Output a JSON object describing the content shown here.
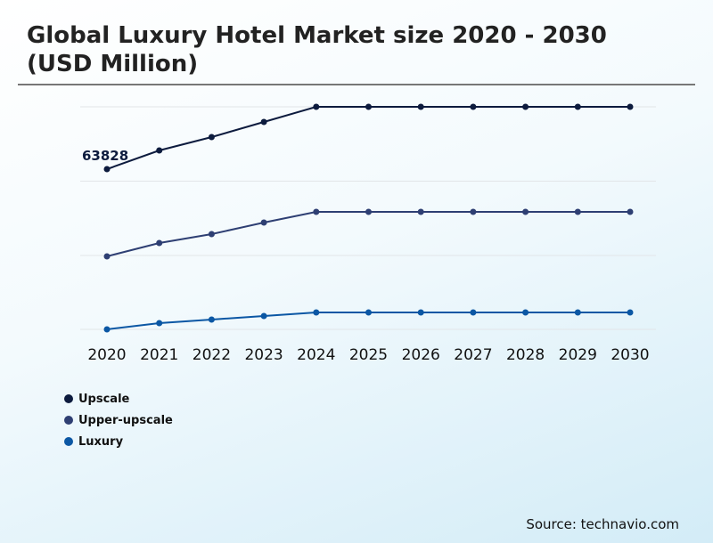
{
  "chart_data": {
    "type": "line",
    "title": "Global Luxury Hotel Market size 2020 - 2030 (USD Million)",
    "xlabel": "",
    "ylabel": "",
    "categories": [
      "2020",
      "2021",
      "2022",
      "2023",
      "2024",
      "2025",
      "2026",
      "2027",
      "2028",
      "2029",
      "2030"
    ],
    "ylim": [
      0,
      88650
    ],
    "grid": true,
    "y_axis_labels_shown": false,
    "legend_position": "bottom-left",
    "series": [
      {
        "name": "Upscale",
        "color": "#0d1b3e",
        "values": [
          63828,
          71275,
          76594,
          82622,
          88650,
          88650,
          88650,
          88650,
          88650,
          88650,
          88650
        ]
      },
      {
        "name": "Upper-upscale",
        "color": "#2e3f73",
        "values": [
          29077,
          34396,
          37942,
          42552,
          46807,
          46807,
          46807,
          46807,
          46807,
          46807,
          46807
        ]
      },
      {
        "name": "Luxury",
        "color": "#0b57a4",
        "values": [
          0,
          2482,
          3901,
          5319,
          6737,
          6737,
          6737,
          6737,
          6737,
          6737,
          6737
        ]
      }
    ],
    "annotations": [
      {
        "series": "Upscale",
        "category": "2020",
        "text": "63828"
      }
    ]
  },
  "source": "Source: technavio.com"
}
